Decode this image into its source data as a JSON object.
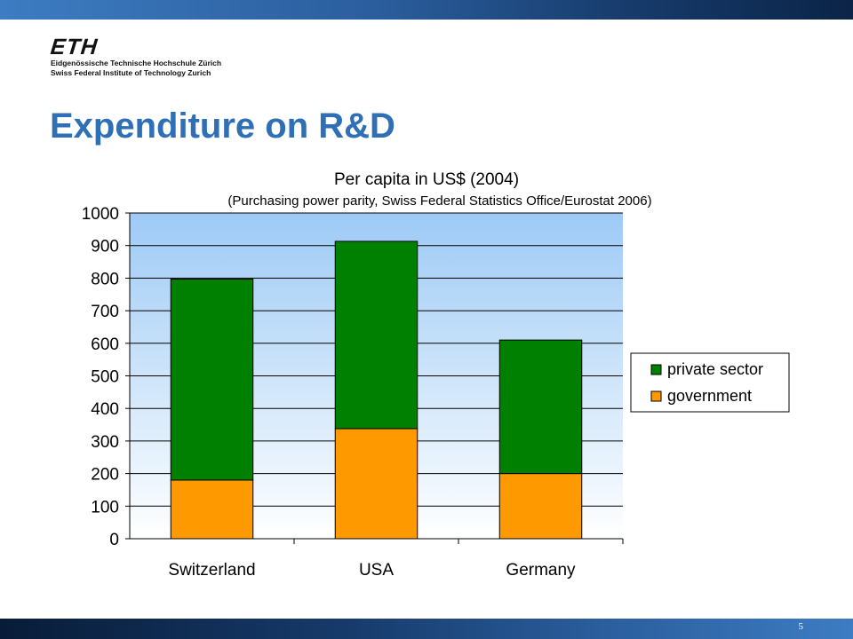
{
  "header": {
    "logo_text": "ETH",
    "logo_line1": "Eidgenössische Technische Hochschule Zürich",
    "logo_line2": "Swiss Federal Institute of Technology Zurich"
  },
  "slide": {
    "title": "Expenditure on R&D",
    "page_number": "5"
  },
  "chart_data": {
    "type": "bar",
    "stacked": true,
    "title": "Per capita in US$ (2004)",
    "subtitle": "(Purchasing power parity, Swiss Federal Statistics Office/Eurostat 2006)",
    "categories": [
      "Switzerland",
      "USA",
      "Germany"
    ],
    "series": [
      {
        "name": "government",
        "values": [
          180,
          338,
          200
        ],
        "color": "#ff9900"
      },
      {
        "name": "private sector",
        "values": [
          617,
          575,
          410
        ],
        "color": "#008000"
      }
    ],
    "legend_order": [
      "private sector",
      "government"
    ],
    "ylim": [
      0,
      1000
    ],
    "yticks": [
      "0",
      "100",
      "200",
      "300",
      "400",
      "500",
      "600",
      "700",
      "800",
      "900",
      "1000"
    ],
    "xlabel": "",
    "ylabel": "",
    "grid": true,
    "legend_position": "right",
    "plot_background": "light blue gradient"
  }
}
